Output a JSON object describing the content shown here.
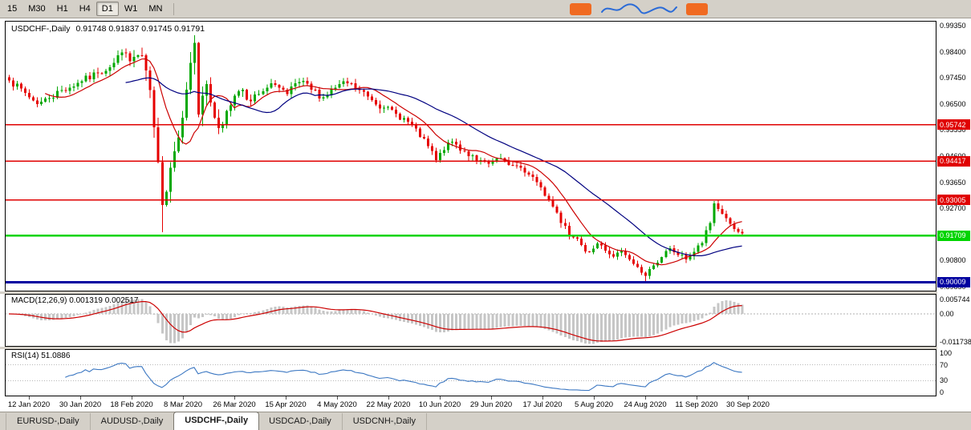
{
  "toolbar": {
    "timeframes": [
      "15",
      "M30",
      "H1",
      "H4",
      "D1",
      "W1",
      "MN"
    ],
    "active_timeframe": "D1"
  },
  "chart": {
    "title": "USDCHF-,Daily",
    "ohlc": "0.91748 0.91837 0.91745 0.91791",
    "price_axis": [
      "0.99350",
      "0.98400",
      "0.97450",
      "0.96500",
      "0.95550",
      "0.94600",
      "0.93650",
      "0.92700",
      "0.91750",
      "0.90800",
      "0.89850"
    ],
    "levels": [
      {
        "value": 0.95742,
        "label": "0.95742",
        "color": "#e00000",
        "width": 1.6
      },
      {
        "value": 0.94417,
        "label": "0.94417",
        "color": "#e00000",
        "width": 1.6
      },
      {
        "value": 0.93005,
        "label": "0.93005",
        "color": "#e00000",
        "width": 1.6
      },
      {
        "value": 0.91709,
        "label": "0.91709",
        "color": "#00d400",
        "width": 2.4
      },
      {
        "value": 0.90009,
        "label": "0.90009",
        "color": "#0000a0",
        "width": 2.8
      }
    ]
  },
  "macd_panel": {
    "label": "MACD(12,26,9) 0.001319 0.002517",
    "axis": [
      "0.005744",
      "0.00",
      "-0.011738"
    ],
    "range": [
      -0.0125,
      0.0075
    ]
  },
  "rsi_panel": {
    "label": "RSI(14) 51.0886",
    "axis": [
      "100",
      "70",
      "30",
      "0"
    ],
    "guides": [
      70,
      30
    ]
  },
  "dates": [
    "12 Jan 2020",
    "30 Jan 2020",
    "18 Feb 2020",
    "8 Mar 2020",
    "26 Mar 2020",
    "15 Apr 2020",
    "4 May 2020",
    "22 May 2020",
    "10 Jun 2020",
    "29 Jun 2020",
    "17 Jul 2020",
    "5 Aug 2020",
    "24 Aug 2020",
    "11 Sep 2020",
    "30 Sep 2020"
  ],
  "tabs": {
    "items": [
      "EURUSD-,Daily",
      "AUDUSD-,Daily",
      "USDCHF-,Daily",
      "USDCAD-,Daily",
      "USDCNH-,Daily"
    ],
    "active": "USDCHF-,Daily"
  },
  "colors": {
    "bull": "#00a800",
    "bear": "#e60000",
    "ma_fast": "#cc0000",
    "ma_slow": "#000080",
    "macd_bar": "#c6c6c6",
    "macd_signal": "#cc0000",
    "rsi": "#3b77c2",
    "chrome": "#d4d0c8",
    "accent_orange": "#f06a21",
    "logo_blue": "#2b6bd7"
  },
  "chart_data": {
    "type": "candlestick",
    "symbol": "USDCHF-",
    "timeframe": "Daily",
    "last_ohlc": {
      "open": 0.91748,
      "high": 0.91837,
      "low": 0.91745,
      "close": 0.91791
    },
    "num_candles": 183,
    "ylim": [
      0.897,
      0.995
    ],
    "close_anchors": [
      [
        0,
        0.9735
      ],
      [
        4,
        0.969
      ],
      [
        7,
        0.965
      ],
      [
        10,
        0.9672
      ],
      [
        13,
        0.97
      ],
      [
        18,
        0.9732
      ],
      [
        22,
        0.9762
      ],
      [
        26,
        0.98
      ],
      [
        28,
        0.9838
      ],
      [
        30,
        0.9806
      ],
      [
        32,
        0.9828
      ],
      [
        34,
        0.9772
      ],
      [
        35,
        0.97
      ],
      [
        36,
        0.9565
      ],
      [
        37,
        0.9438
      ],
      [
        38,
        0.9282
      ],
      [
        39,
        0.933
      ],
      [
        40,
        0.9418
      ],
      [
        41,
        0.9478
      ],
      [
        42,
        0.9528
      ],
      [
        43,
        0.96
      ],
      [
        44,
        0.9702
      ],
      [
        45,
        0.98
      ],
      [
        46,
        0.9872
      ],
      [
        47,
        0.9612
      ],
      [
        48,
        0.968
      ],
      [
        49,
        0.9722
      ],
      [
        50,
        0.9655
      ],
      [
        52,
        0.9562
      ],
      [
        54,
        0.9625
      ],
      [
        56,
        0.968
      ],
      [
        58,
        0.9702
      ],
      [
        60,
        0.966
      ],
      [
        63,
        0.9696
      ],
      [
        66,
        0.972
      ],
      [
        69,
        0.9686
      ],
      [
        72,
        0.973
      ],
      [
        75,
        0.9702
      ],
      [
        78,
        0.9674
      ],
      [
        81,
        0.971
      ],
      [
        84,
        0.9726
      ],
      [
        87,
        0.97
      ],
      [
        90,
        0.9664
      ],
      [
        93,
        0.9636
      ],
      [
        96,
        0.9614
      ],
      [
        99,
        0.9586
      ],
      [
        102,
        0.953
      ],
      [
        104,
        0.9496
      ],
      [
        106,
        0.9446
      ],
      [
        108,
        0.9482
      ],
      [
        110,
        0.9512
      ],
      [
        113,
        0.9478
      ],
      [
        116,
        0.9444
      ],
      [
        119,
        0.9432
      ],
      [
        122,
        0.9452
      ],
      [
        125,
        0.9426
      ],
      [
        128,
        0.94
      ],
      [
        130,
        0.9384
      ],
      [
        132,
        0.9346
      ],
      [
        134,
        0.93
      ],
      [
        136,
        0.9254
      ],
      [
        138,
        0.9206
      ],
      [
        140,
        0.9164
      ],
      [
        142,
        0.9136
      ],
      [
        144,
        0.911
      ],
      [
        146,
        0.9142
      ],
      [
        148,
        0.9116
      ],
      [
        150,
        0.9094
      ],
      [
        152,
        0.9114
      ],
      [
        154,
        0.9084
      ],
      [
        156,
        0.9056
      ],
      [
        158,
        0.9024
      ],
      [
        160,
        0.9062
      ],
      [
        162,
        0.9092
      ],
      [
        164,
        0.9124
      ],
      [
        166,
        0.91
      ],
      [
        168,
        0.9084
      ],
      [
        170,
        0.9112
      ],
      [
        172,
        0.9144
      ],
      [
        174,
        0.9216
      ],
      [
        175,
        0.9288
      ],
      [
        176,
        0.9268
      ],
      [
        177,
        0.925
      ],
      [
        178,
        0.9234
      ],
      [
        179,
        0.9214
      ],
      [
        180,
        0.9194
      ],
      [
        181,
        0.9184
      ],
      [
        182,
        0.91791
      ]
    ],
    "vol_anchors": [
      [
        0,
        0.0018
      ],
      [
        30,
        0.0024
      ],
      [
        35,
        0.006
      ],
      [
        47,
        0.0065
      ],
      [
        52,
        0.0038
      ],
      [
        60,
        0.0024
      ],
      [
        100,
        0.0018
      ],
      [
        135,
        0.0022
      ],
      [
        150,
        0.0016
      ],
      [
        160,
        0.0015
      ],
      [
        175,
        0.0018
      ],
      [
        182,
        0.0012
      ]
    ],
    "wick_overrides": [
      {
        "i": 38,
        "low": 0.9183
      },
      {
        "i": 46,
        "high": 0.9901
      },
      {
        "i": 158,
        "low": 0.9001
      },
      {
        "i": 175,
        "high": 0.9296
      }
    ],
    "seed": 7,
    "ma_fast_period": 10,
    "ma_slow_period": 30,
    "rsi_period": 14
  }
}
